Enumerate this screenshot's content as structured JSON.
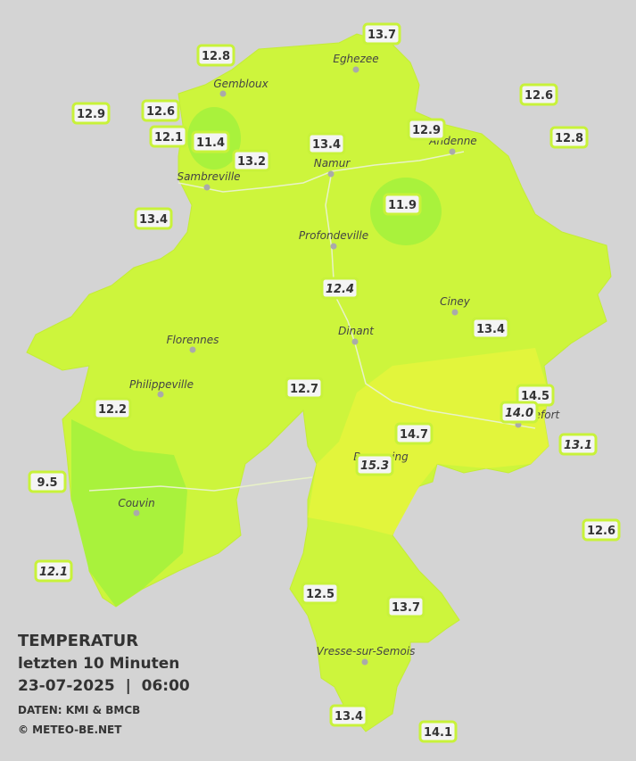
{
  "header": {
    "title": "TEMPERATUR",
    "period": "letzten 10 Minuten",
    "datetime": "23-07-2025  |  06:00",
    "source": "DATEN: KMI & BMCB",
    "credit": "© METEO-BE.NET"
  },
  "cities": [
    "Eghezee",
    "Gembloux",
    "Andenne",
    "Namur",
    "Sambreville",
    "Profondeville",
    "Ciney",
    "Dinant",
    "Florennes",
    "Philippeville",
    "Beauraing",
    "Rochefort",
    "Couvin",
    "Vresse-sur-Semois"
  ],
  "stations": [
    "13.7",
    "12.8",
    "12.6",
    "12.9",
    "12.6",
    "12.1",
    "11.4",
    "13.4",
    "13.2",
    "12.9",
    "12.8",
    "13.4",
    "11.9",
    "12.4",
    "13.4",
    "12.7",
    "14.5",
    "14.0",
    "12.2",
    "14.7",
    "13.1",
    "15.3",
    "9.5",
    "12.6",
    "12.1",
    "12.5",
    "13.7",
    "13.4",
    "14.1"
  ]
}
